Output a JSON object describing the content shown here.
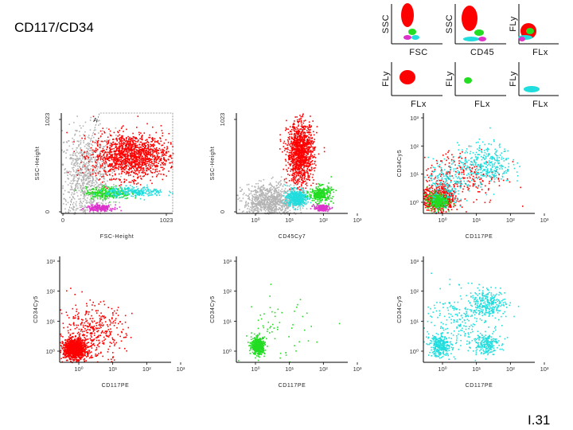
{
  "title": "CD117/CD34",
  "slide_number": "I.31",
  "colors": {
    "red": "#ff0000",
    "green": "#22dd22",
    "cyan": "#22dddd",
    "magenta": "#dd33cc",
    "gray": "#b4b4b4"
  },
  "thumbnails": [
    {
      "ylabel": "SSC",
      "xlabel": "FSC"
    },
    {
      "ylabel": "SSC",
      "xlabel": "CD45"
    },
    {
      "ylabel": "FLy",
      "xlabel": "FLx"
    },
    {
      "ylabel": "FLy",
      "xlabel": "FLx"
    },
    {
      "ylabel": "FLy",
      "xlabel": "FLx"
    },
    {
      "ylabel": "FLy",
      "xlabel": "FLx"
    }
  ],
  "chart_data": [
    {
      "type": "scatter",
      "xlabel": "FSC-Height",
      "ylabel": "SSC-Height",
      "scale": "linear",
      "x_ticks": [
        "0",
        "1023"
      ],
      "y_ticks": [
        "0",
        "1023"
      ],
      "gate_label": "A",
      "populations": [
        {
          "color": "gray",
          "cx": 0.22,
          "cy": 0.35,
          "sx": 0.13,
          "sy": 0.25,
          "n": 900
        },
        {
          "color": "red",
          "cx": 0.62,
          "cy": 0.58,
          "sx": 0.17,
          "sy": 0.11,
          "n": 1400
        },
        {
          "color": "green",
          "cx": 0.42,
          "cy": 0.21,
          "sx": 0.1,
          "sy": 0.03,
          "n": 300
        },
        {
          "color": "cyan",
          "cx": 0.66,
          "cy": 0.22,
          "sx": 0.13,
          "sy": 0.025,
          "n": 250
        },
        {
          "color": "magenta",
          "cx": 0.34,
          "cy": 0.06,
          "sx": 0.06,
          "sy": 0.015,
          "n": 220
        }
      ]
    },
    {
      "type": "scatter",
      "xlabel": "CD45Cy7",
      "ylabel": "SSC-Height",
      "scale": "log-linear",
      "x_ticks": [
        "10⁰",
        "10¹",
        "10²",
        "10³"
      ],
      "y_ticks": [
        "0",
        "1023"
      ],
      "populations": [
        {
          "color": "gray",
          "cx": 0.3,
          "cy": 0.12,
          "sx": 0.12,
          "sy": 0.09,
          "n": 900
        },
        {
          "color": "red",
          "cx": 0.57,
          "cy": 0.61,
          "sx": 0.06,
          "sy": 0.15,
          "n": 1200
        },
        {
          "color": "cyan",
          "cx": 0.54,
          "cy": 0.16,
          "sx": 0.045,
          "sy": 0.04,
          "n": 500
        },
        {
          "color": "green",
          "cx": 0.75,
          "cy": 0.2,
          "sx": 0.05,
          "sy": 0.04,
          "n": 300
        },
        {
          "color": "magenta",
          "cx": 0.76,
          "cy": 0.06,
          "sx": 0.035,
          "sy": 0.015,
          "n": 180
        }
      ]
    },
    {
      "type": "scatter",
      "xlabel": "CD117PE",
      "ylabel": "CD34Cy5",
      "scale": "log",
      "x_ticks": [
        "10⁰",
        "10¹",
        "10²",
        "10³"
      ],
      "y_ticks": [
        "10⁰",
        "10¹",
        "10²",
        "10³"
      ],
      "populations": [
        {
          "color": "red",
          "cx": 0.13,
          "cy": 0.15,
          "sx": 0.07,
          "sy": 0.06,
          "n": 700
        },
        {
          "color": "red",
          "cx": 0.32,
          "cy": 0.38,
          "sx": 0.2,
          "sy": 0.14,
          "n": 250
        },
        {
          "color": "green",
          "cx": 0.12,
          "cy": 0.13,
          "sx": 0.045,
          "sy": 0.04,
          "n": 350
        },
        {
          "color": "cyan",
          "cx": 0.55,
          "cy": 0.5,
          "sx": 0.12,
          "sy": 0.1,
          "n": 350
        },
        {
          "color": "cyan",
          "cx": 0.2,
          "cy": 0.3,
          "sx": 0.08,
          "sy": 0.12,
          "n": 200
        }
      ]
    },
    {
      "type": "scatter",
      "xlabel": "CD117PE",
      "ylabel": "CD34Cy5",
      "scale": "log",
      "x_ticks": [
        "10⁰",
        "10¹",
        "10²",
        "10³"
      ],
      "y_ticks": [
        "10⁰",
        "10¹",
        "10²",
        "10³"
      ],
      "populations": [
        {
          "color": "red",
          "cx": 0.13,
          "cy": 0.13,
          "sx": 0.05,
          "sy": 0.045,
          "n": 1100
        },
        {
          "color": "red",
          "cx": 0.28,
          "cy": 0.28,
          "sx": 0.15,
          "sy": 0.14,
          "n": 400
        }
      ]
    },
    {
      "type": "scatter",
      "xlabel": "CD117PE",
      "ylabel": "CD34Cy5",
      "scale": "log",
      "x_ticks": [
        "10⁰",
        "10¹",
        "10²",
        "10³"
      ],
      "y_ticks": [
        "10⁰",
        "10¹",
        "10²",
        "10³"
      ],
      "populations": [
        {
          "color": "green",
          "cx": 0.19,
          "cy": 0.16,
          "sx": 0.03,
          "sy": 0.04,
          "n": 450
        },
        {
          "color": "green",
          "cx": 0.35,
          "cy": 0.32,
          "sx": 0.16,
          "sy": 0.15,
          "n": 60
        }
      ]
    },
    {
      "type": "scatter",
      "xlabel": "CD117PE",
      "ylabel": "CD34Cy5",
      "scale": "log",
      "x_ticks": [
        "10⁰",
        "10¹",
        "10²",
        "10³"
      ],
      "y_ticks": [
        "10⁰",
        "10¹",
        "10²",
        "10³"
      ],
      "populations": [
        {
          "color": "cyan",
          "cx": 0.15,
          "cy": 0.16,
          "sx": 0.05,
          "sy": 0.05,
          "n": 300
        },
        {
          "color": "cyan",
          "cx": 0.57,
          "cy": 0.56,
          "sx": 0.08,
          "sy": 0.06,
          "n": 250
        },
        {
          "color": "cyan",
          "cx": 0.55,
          "cy": 0.18,
          "sx": 0.06,
          "sy": 0.05,
          "n": 200
        },
        {
          "color": "cyan",
          "cx": 0.35,
          "cy": 0.4,
          "sx": 0.18,
          "sy": 0.15,
          "n": 250
        }
      ]
    }
  ]
}
